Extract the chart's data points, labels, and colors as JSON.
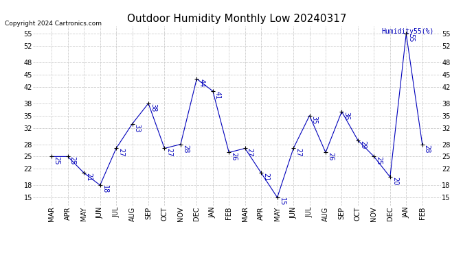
{
  "title": "Outdoor Humidity Monthly Low 20240317",
  "copyright": "Copyright 2024 Cartronics.com",
  "legend_label": "Humidity55(%)",
  "months": [
    "MAR",
    "APR",
    "MAY",
    "JUN",
    "JUL",
    "AUG",
    "SEP",
    "OCT",
    "NOV",
    "DEC",
    "JAN",
    "FEB",
    "MAR",
    "APR",
    "MAY",
    "JUN",
    "JUL",
    "AUG",
    "SEP",
    "OCT",
    "NOV",
    "DEC",
    "JAN",
    "FEB"
  ],
  "values": [
    25,
    25,
    21,
    18,
    27,
    33,
    38,
    27,
    28,
    44,
    41,
    26,
    27,
    21,
    15,
    27,
    35,
    26,
    36,
    29,
    25,
    20,
    55,
    28
  ],
  "line_color": "#0000bb",
  "marker_color": "#000000",
  "label_color": "#0000bb",
  "background_color": "#ffffff",
  "grid_color": "#cccccc",
  "title_color": "#000000",
  "copyright_color": "#000000",
  "ylim": [
    13,
    57
  ],
  "yticks": [
    15,
    18,
    22,
    25,
    28,
    32,
    35,
    38,
    42,
    45,
    48,
    52,
    55
  ],
  "title_fontsize": 11,
  "label_fontsize": 7,
  "tick_fontsize": 7,
  "copyright_fontsize": 6.5
}
